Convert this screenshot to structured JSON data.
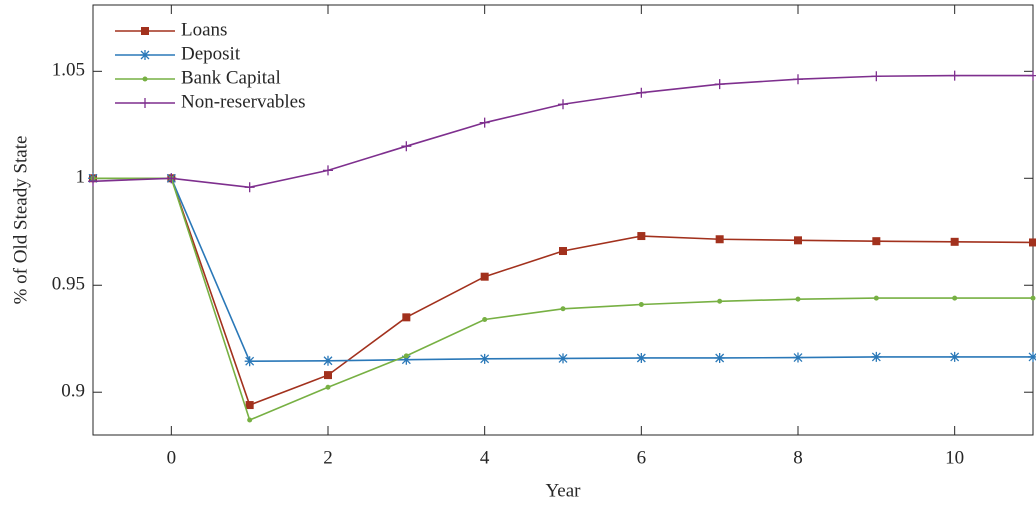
{
  "chart_data": {
    "type": "line",
    "x_label": "Year",
    "y_label": "% of Old Steady State",
    "x": [
      -1,
      0,
      1,
      2,
      3,
      4,
      5,
      6,
      7,
      8,
      9,
      10,
      11
    ],
    "series": [
      {
        "name": "Loans",
        "color": "#a2311d",
        "marker": "square",
        "values": [
          1.0,
          1.0,
          0.894,
          0.908,
          0.935,
          0.954,
          0.966,
          0.973,
          0.9715,
          0.971,
          0.9706,
          0.9703,
          0.97
        ]
      },
      {
        "name": "Deposit",
        "color": "#2a78b8",
        "marker": "asterisk",
        "values": [
          1.0,
          1.0,
          0.9145,
          0.9147,
          0.9152,
          0.9156,
          0.9158,
          0.916,
          0.916,
          0.9162,
          0.9165,
          0.9165,
          0.9165
        ]
      },
      {
        "name": "Bank Capital",
        "color": "#77b043",
        "marker": "dot",
        "values": [
          1.0,
          1.0,
          0.887,
          0.9023,
          0.917,
          0.934,
          0.939,
          0.941,
          0.9425,
          0.9435,
          0.944,
          0.944,
          0.944
        ]
      },
      {
        "name": "Non-reservables",
        "color": "#7e2f8e",
        "marker": "plus",
        "values": [
          0.9986,
          1.0,
          0.9958,
          1.0037,
          1.015,
          1.026,
          1.0346,
          1.04,
          1.044,
          1.0463,
          1.0477,
          1.048,
          1.048
        ]
      }
    ],
    "xlim": [
      -1,
      11
    ],
    "ylim": [
      0.88,
      1.081
    ],
    "xticks": [
      0,
      2,
      4,
      6,
      8,
      10
    ],
    "yticks": [
      0.9,
      0.95,
      1,
      1.05
    ],
    "legend": "top-left",
    "grid": false
  }
}
